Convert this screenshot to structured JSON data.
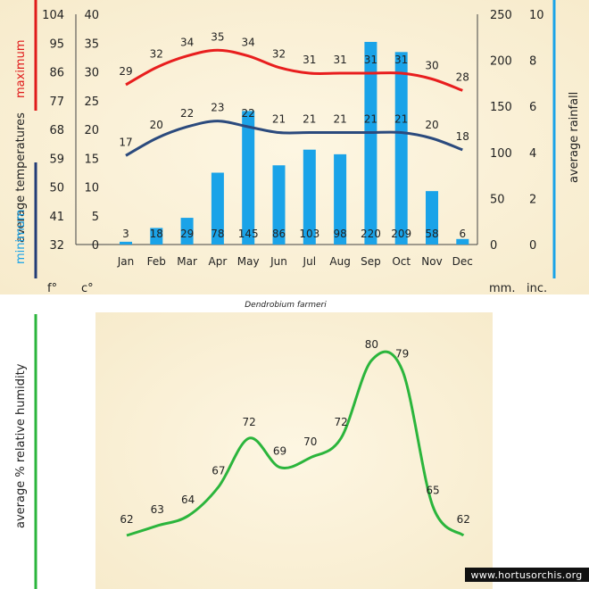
{
  "chart_data": [
    {
      "type": "bar+line",
      "name": "climate",
      "categories": [
        "Jan",
        "Feb",
        "Mar",
        "Apr",
        "May",
        "Jun",
        "Jul",
        "Aug",
        "Sep",
        "Oct",
        "Nov",
        "Dec"
      ],
      "temp_max_c": [
        29,
        32,
        34,
        35,
        34,
        32,
        31,
        31,
        31,
        31,
        30,
        28
      ],
      "temp_min_c": [
        17,
        20,
        22,
        23,
        22,
        21,
        21,
        21,
        21,
        21,
        20,
        18
      ],
      "rain_mm": [
        3,
        18,
        29,
        78,
        145,
        86,
        103,
        98,
        220,
        209,
        58,
        6
      ],
      "left_axis_f_ticks": [
        "104",
        "95",
        "86",
        "77",
        "68",
        "59",
        "50",
        "41",
        "32"
      ],
      "left_axis_c_ticks": [
        "40",
        "35",
        "30",
        "25",
        "20",
        "15",
        "10",
        "5",
        "0"
      ],
      "right_axis_mm_ticks": [
        "250",
        "200",
        "150",
        "100",
        "50",
        "0"
      ],
      "right_axis_inch_ticks": [
        "10",
        "8",
        "6",
        "4",
        "2",
        "0"
      ],
      "y_c_range": [
        0,
        40
      ],
      "y_mm_range": [
        0,
        250
      ],
      "labels": {
        "maximum": "maximum",
        "average_temperatures": "average  temperatures",
        "minimum": "minimum",
        "average_rainfall": "average rainfall",
        "f_unit": "f°",
        "c_unit": "c°",
        "mm_unit": "mm.",
        "inch_unit": "inc."
      },
      "colors": {
        "max_line": "#e81e1e",
        "min_line": "#2b4a7d",
        "bars": "#1aa3e8",
        "red_axis": "#e01b1b",
        "blue_axis": "#233d77",
        "cyan_axis": "#1aa3e8",
        "panel_bg": "#fbf2da"
      }
    },
    {
      "type": "line",
      "name": "humidity",
      "title": "Dendrobium farmeri",
      "ylabel": "average %  relative humidity",
      "values": [
        62,
        63,
        64,
        67,
        72,
        69,
        70,
        72,
        80,
        79,
        65,
        62
      ],
      "colors": {
        "line": "#2bb53c",
        "axis": "#2bb53c",
        "panel_bg": "#fbf2da"
      }
    }
  ],
  "watermark": "www.hortusorchis.org"
}
